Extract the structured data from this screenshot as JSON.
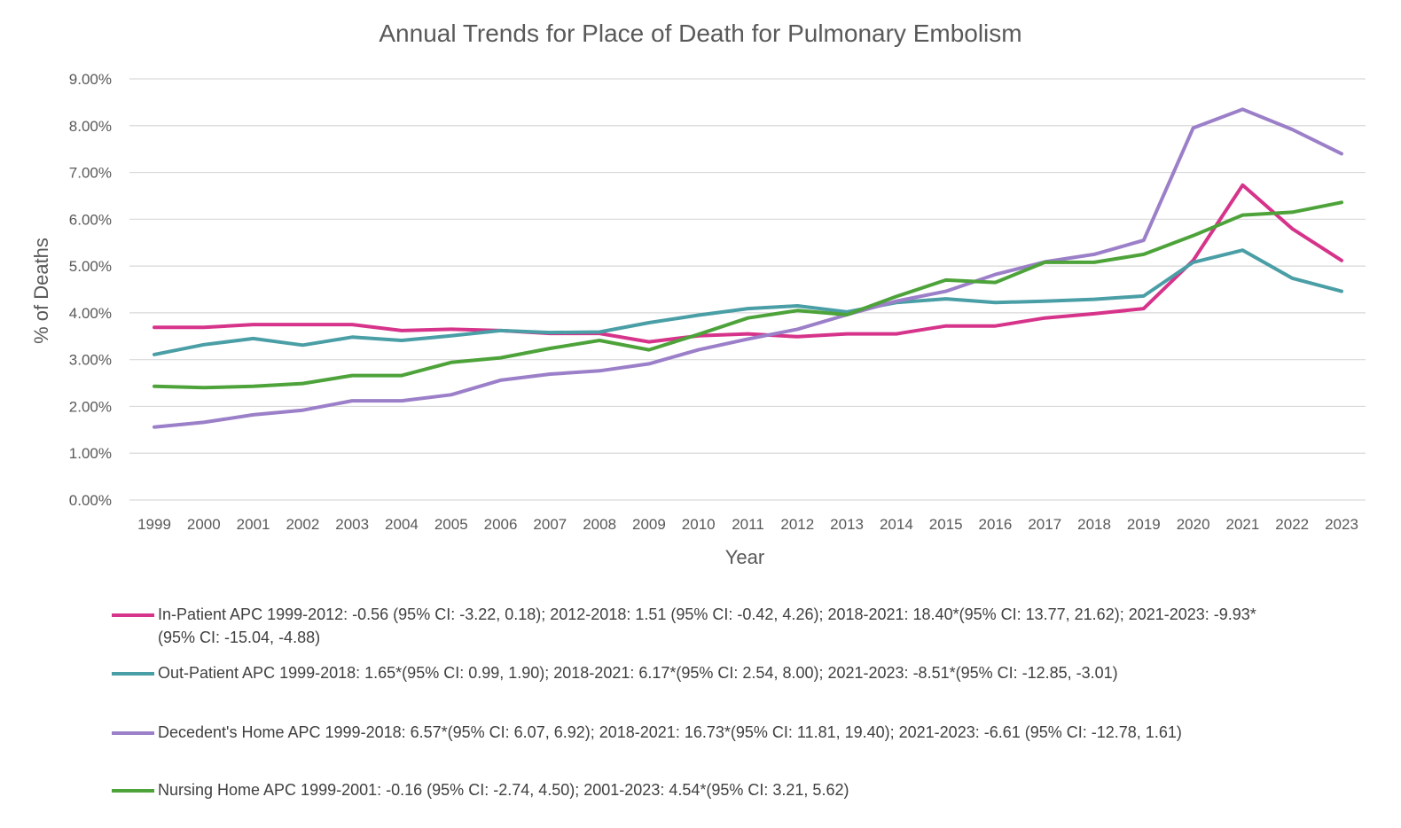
{
  "chart_data": {
    "type": "line",
    "title": "Annual Trends for Place of Death for Pulmonary Embolism",
    "xlabel": "Year",
    "ylabel": "% of Deaths",
    "ylim": [
      0,
      9
    ],
    "yticks": [
      "0.00%",
      "1.00%",
      "2.00%",
      "3.00%",
      "4.00%",
      "5.00%",
      "6.00%",
      "7.00%",
      "8.00%",
      "9.00%"
    ],
    "grid": true,
    "legend_position": "bottom",
    "categories": [
      "1999",
      "2000",
      "2001",
      "2002",
      "2003",
      "2004",
      "2005",
      "2006",
      "2007",
      "2008",
      "2009",
      "2010",
      "2011",
      "2012",
      "2013",
      "2014",
      "2015",
      "2016",
      "2017",
      "2018",
      "2019",
      "2020",
      "2021",
      "2022",
      "2023"
    ],
    "series": [
      {
        "name": "In-Patient APC 1999-2012: -0.56 (95% CI: -3.22, 0.18); 2012-2018: 1.51 (95% CI: -0.42, 4.26); 2018-2021: 18.40*(95% CI: 13.77, 21.62); 2021-2023: -9.93*(95% CI: -15.04, -4.88)",
        "color": "#d6338a",
        "values": [
          3.69,
          3.69,
          3.75,
          3.75,
          3.75,
          3.62,
          3.65,
          3.62,
          3.56,
          3.56,
          3.38,
          3.51,
          3.55,
          3.49,
          3.55,
          3.55,
          3.72,
          3.72,
          3.89,
          3.98,
          4.09,
          5.12,
          6.73,
          5.8,
          5.12
        ]
      },
      {
        "name": "Out-Patient APC 1999-2018: 1.65*(95% CI: 0.99, 1.90); 2018-2021: 6.17*(95% CI: 2.54, 8.00); 2021-2023: -8.51*(95% CI: -12.85, -3.01)",
        "color": "#4a9ea6",
        "values": [
          3.11,
          3.32,
          3.45,
          3.31,
          3.48,
          3.41,
          3.51,
          3.62,
          3.58,
          3.59,
          3.79,
          3.95,
          4.09,
          4.15,
          4.02,
          4.22,
          4.3,
          4.22,
          4.25,
          4.29,
          4.36,
          5.08,
          5.34,
          4.74,
          4.46
        ]
      },
      {
        "name": "Decedent's Home APC 1999-2018: 6.57*(95% CI: 6.07, 6.92); 2018-2021: 16.73*(95% CI: 11.81, 19.40); 2021-2023: -6.61 (95% CI: -12.78, 1.61)",
        "color": "#9b7fc8",
        "values": [
          1.56,
          1.66,
          1.82,
          1.92,
          2.12,
          2.12,
          2.25,
          2.56,
          2.69,
          2.76,
          2.91,
          3.21,
          3.44,
          3.65,
          3.96,
          4.25,
          4.46,
          4.82,
          5.09,
          5.25,
          5.55,
          7.95,
          8.35,
          7.92,
          7.4
        ]
      },
      {
        "name": "Nursing Home APC 1999-2001: -0.16 (95% CI: -2.74, 4.50); 2001-2023: 4.54*(95% CI: 3.21, 5.62)",
        "color": "#4da33a",
        "values": [
          2.43,
          2.4,
          2.43,
          2.49,
          2.66,
          2.66,
          2.94,
          3.04,
          3.24,
          3.41,
          3.21,
          3.54,
          3.89,
          4.05,
          3.96,
          4.35,
          4.7,
          4.65,
          5.08,
          5.08,
          5.25,
          5.65,
          6.09,
          6.15,
          6.36
        ]
      }
    ]
  }
}
